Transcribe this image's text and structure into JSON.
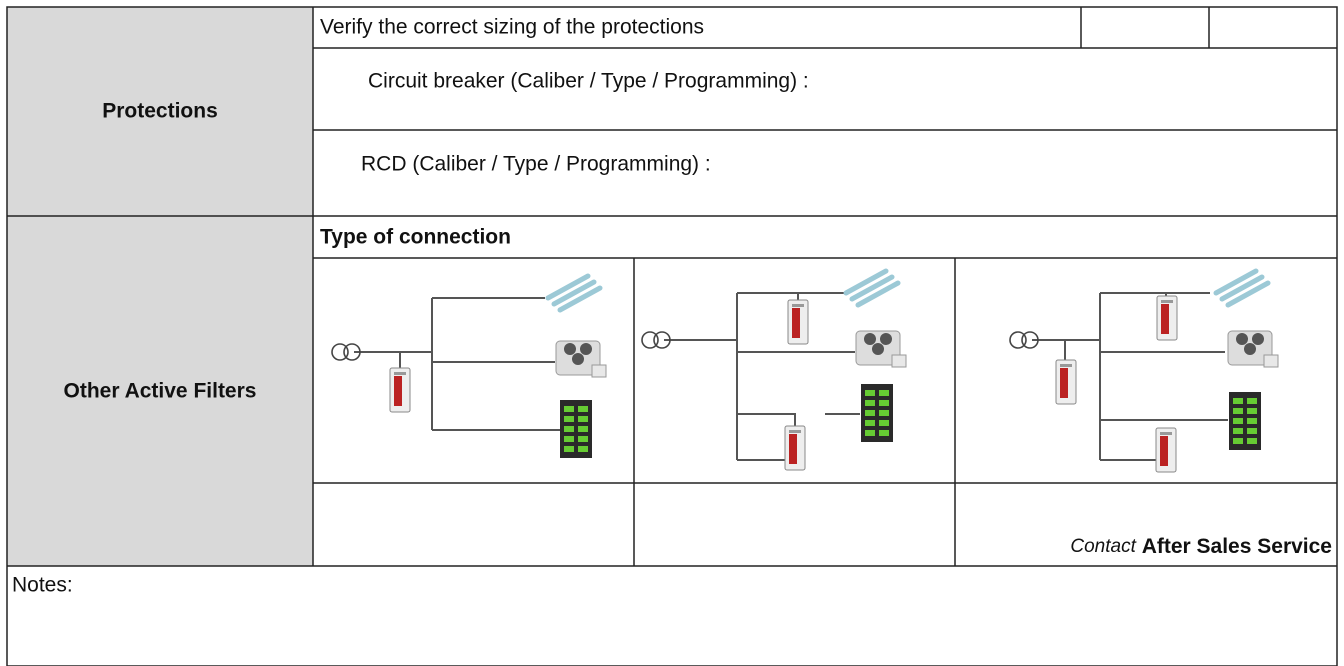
{
  "protections": {
    "label": "Protections",
    "check": "Verify the correct sizing of the protections",
    "circuit_breaker": "Circuit breaker (Caliber / Type / Programming) :",
    "rcd": "RCD (Caliber / Type / Programming) :"
  },
  "other_active_filters": {
    "label": "Other Active Filters",
    "connection_heading": "Type of connection",
    "note": {
      "prefix": "Contact",
      "emphasis": "After Sales Service"
    }
  },
  "notes": {
    "label": "Notes:"
  }
}
